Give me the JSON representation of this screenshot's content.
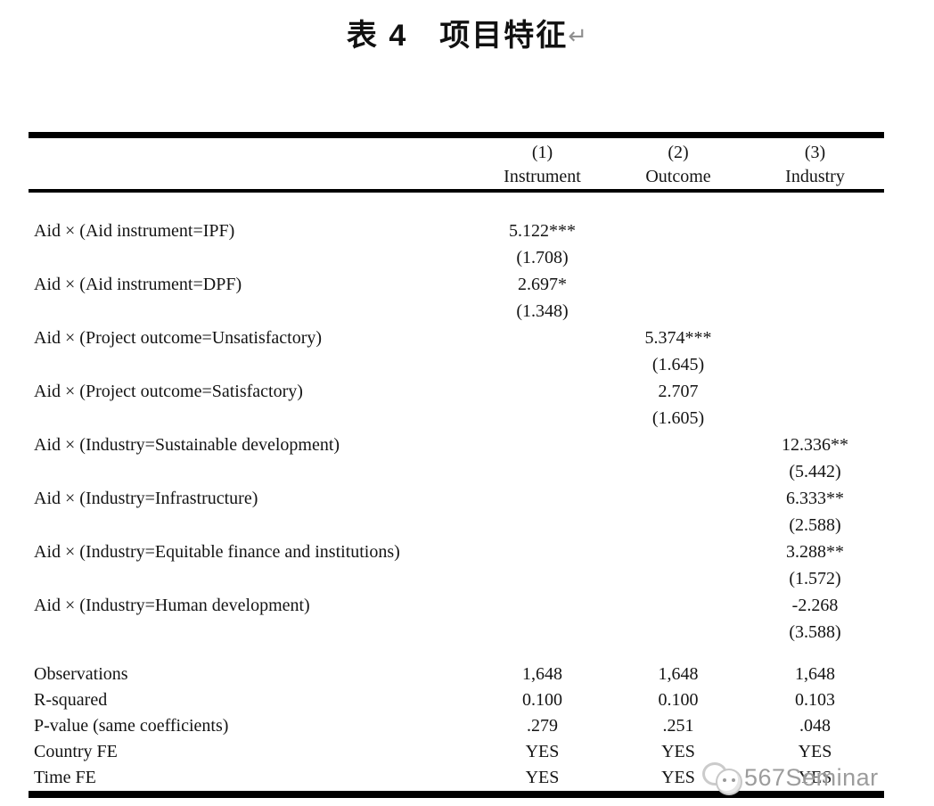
{
  "title": {
    "text": "表 4　项目特征",
    "return_mark": "↵"
  },
  "table": {
    "columns": [
      {
        "number": "(1)",
        "label": "Instrument"
      },
      {
        "number": "(2)",
        "label": "Outcome"
      },
      {
        "number": "(3)",
        "label": "Industry"
      }
    ],
    "coef_rows": [
      {
        "label": "Aid × (Aid instrument=IPF)",
        "values": [
          "5.122***",
          "",
          ""
        ],
        "se": [
          "(1.708)",
          "",
          ""
        ]
      },
      {
        "label": "Aid × (Aid instrument=DPF)",
        "values": [
          "2.697*",
          "",
          ""
        ],
        "se": [
          "(1.348)",
          "",
          ""
        ]
      },
      {
        "label": "Aid × (Project outcome=Unsatisfactory)",
        "values": [
          "",
          "5.374***",
          ""
        ],
        "se": [
          "",
          "(1.645)",
          ""
        ]
      },
      {
        "label": "Aid × (Project outcome=Satisfactory)",
        "values": [
          "",
          "2.707",
          ""
        ],
        "se": [
          "",
          "(1.605)",
          ""
        ]
      },
      {
        "label": "Aid × (Industry=Sustainable development)",
        "values": [
          "",
          "",
          "12.336**"
        ],
        "se": [
          "",
          "",
          "(5.442)"
        ]
      },
      {
        "label": "Aid × (Industry=Infrastructure)",
        "values": [
          "",
          "",
          "6.333**"
        ],
        "se": [
          "",
          "",
          "(2.588)"
        ]
      },
      {
        "label": "Aid × (Industry=Equitable finance and institutions)",
        "values": [
          "",
          "",
          "3.288**"
        ],
        "se": [
          "",
          "",
          "(1.572)"
        ]
      },
      {
        "label": "Aid × (Industry=Human development)",
        "values": [
          "",
          "",
          "-2.268"
        ],
        "se": [
          "",
          "",
          "(3.588)"
        ]
      }
    ],
    "summary_rows": [
      {
        "label": "Observations",
        "values": [
          "1,648",
          "1,648",
          "1,648"
        ]
      },
      {
        "label": "R-squared",
        "values": [
          "0.100",
          "0.100",
          "0.103"
        ]
      },
      {
        "label": "P-value (same coefficients)",
        "values": [
          ".279",
          ".251",
          ".048"
        ]
      },
      {
        "label": "Country FE",
        "values": [
          "YES",
          "YES",
          "YES"
        ]
      },
      {
        "label": "Time FE",
        "values": [
          "YES",
          "YES",
          "YES"
        ]
      }
    ]
  },
  "watermark": {
    "text": "567Seminar",
    "icon": "chat-bubble-logo-icon"
  },
  "colors": {
    "text": "#141414",
    "rule": "#000000",
    "watermark_text": "#949494",
    "return_mark": "#8f8f8f",
    "background": "#ffffff"
  }
}
